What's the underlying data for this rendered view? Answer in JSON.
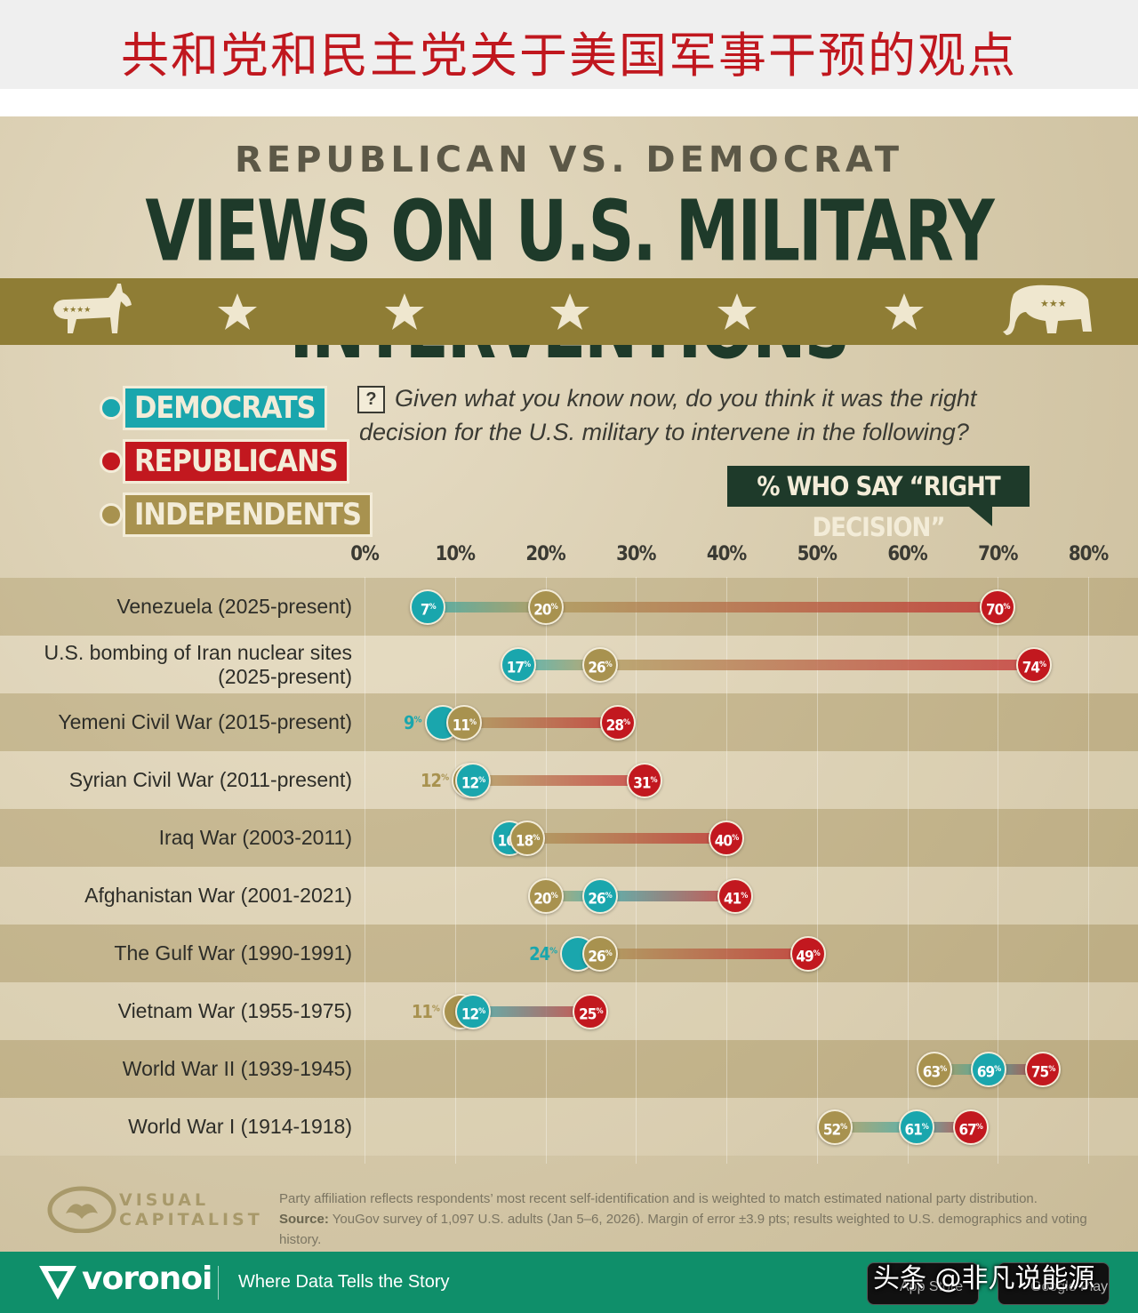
{
  "banner": {
    "title": "共和党和民主党关于美国军事干预的观点"
  },
  "poster": {
    "kicker": "REPUBLICAN VS. DEMOCRAT",
    "headline": "VIEWS ON U.S. MILITARY INTERVENTIONS"
  },
  "legend": [
    {
      "name": "DEMOCRATS",
      "color": "#1aa6ad"
    },
    {
      "name": "REPUBLICANS",
      "color": "#c2181f"
    },
    {
      "name": "INDEPENDENTS",
      "color": "#a8924f"
    }
  ],
  "question": {
    "icon": "?",
    "text": "Given what you know now, do you think it was the right decision for the U.S. military to intervene in the following?"
  },
  "callout": "% WHO SAY “RIGHT DECISION”",
  "chart_data": {
    "type": "dot-range",
    "xlim": [
      0,
      80
    ],
    "x_ticks": [
      "0%",
      "10%",
      "20%",
      "30%",
      "40%",
      "50%",
      "60%",
      "70%",
      "80%"
    ],
    "x_tick_values": [
      0,
      10,
      20,
      30,
      40,
      50,
      60,
      70,
      80
    ],
    "value_suffix": "%",
    "series_names": [
      "Democrats",
      "Republicans",
      "Independents"
    ],
    "categories": [
      "Venezuela (2025-present)",
      "U.S. bombing of Iran nuclear sites (2025-present)",
      "Yemeni Civil War (2015-present)",
      "Syrian Civil War (2011-present)",
      "Iraq War (2003-2011)",
      "Afghanistan War (2001-2021)",
      "The Gulf War (1990-1991)",
      "Vietnam War (1955-1975)",
      "World War II (1939-1945)",
      "World War I (1914-1918)"
    ],
    "label_lines": [
      [
        "Venezuela (2025-present)"
      ],
      [
        "U.S. bombing of Iran nuclear sites",
        "(2025-present)"
      ],
      [
        "Yemeni Civil War (2015-present)"
      ],
      [
        "Syrian Civil War (2011-present)"
      ],
      [
        "Iraq War (2003-2011)"
      ],
      [
        "Afghanistan War (2001-2021)"
      ],
      [
        "The Gulf War (1990-1991)"
      ],
      [
        "Vietnam War (1955-1975)"
      ],
      [
        "World War II (1939-1945)"
      ],
      [
        "World War I (1914-1918)"
      ]
    ],
    "series": [
      {
        "name": "Democrats",
        "color": "#1aa6ad",
        "values": [
          7,
          17,
          9,
          12,
          16,
          26,
          24,
          12,
          69,
          61
        ]
      },
      {
        "name": "Republicans",
        "color": "#c2181f",
        "values": [
          70,
          74,
          28,
          31,
          40,
          41,
          49,
          25,
          75,
          67
        ]
      },
      {
        "name": "Independents",
        "color": "#a8924f",
        "values": [
          20,
          26,
          11,
          12,
          18,
          20,
          26,
          11,
          63,
          52
        ]
      }
    ],
    "overlaps": [
      {
        "row": 2,
        "series": "Democrats"
      },
      {
        "row": 3,
        "series": "Independents"
      },
      {
        "row": 6,
        "series": "Democrats"
      },
      {
        "row": 7,
        "series": "Independents"
      }
    ]
  },
  "footnote": {
    "note": "Party affiliation reflects respondents’ most recent self-identification and is weighted to match estimated national party distribution.",
    "source_label": "Source:",
    "source": "YouGov survey of 1,097 U.S. adults (Jan 5–6, 2026). Margin of error ±3.9 pts; results weighted to U.S. demographics and voting history."
  },
  "brand": {
    "line1": "VISUAL",
    "line2": "CAPITALIST"
  },
  "footer": {
    "brand": "voronoi",
    "tagline": "Where Data Tells the Story",
    "store1": "App Store",
    "store2": "Google Play",
    "watermark": "头条 @非凡说能源"
  }
}
